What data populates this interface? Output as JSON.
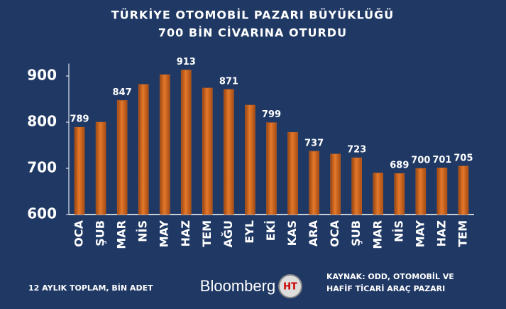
{
  "chart_data": {
    "type": "bar",
    "title": [
      "TÜRKİYE OTOMOBİL PAZARI BÜYÜKLÜĞÜ",
      "700 BİN CİVARINA OTURDU"
    ],
    "categories": [
      "OCA",
      "ŞUB",
      "MAR",
      "NİS",
      "MAY",
      "HAZ",
      "TEM",
      "AĞU",
      "EYL",
      "EKİ",
      "KAS",
      "ARA",
      "OCA",
      "ŞUB",
      "MAR",
      "NİS",
      "MAY",
      "HAZ",
      "TEM"
    ],
    "values": [
      789,
      800,
      847,
      882,
      903,
      913,
      874,
      871,
      837,
      799,
      778,
      737,
      731,
      723,
      690,
      689,
      700,
      701,
      705
    ],
    "show_value_label": [
      true,
      false,
      true,
      false,
      false,
      true,
      false,
      true,
      false,
      true,
      false,
      true,
      false,
      true,
      false,
      true,
      true,
      true,
      true
    ],
    "color": "#cf651d",
    "ylim": [
      600,
      927
    ],
    "yticks": [
      600,
      700,
      800,
      900
    ],
    "footnote": "12 AYLIK TOPLAM, BİN ADET",
    "brand": "Bloomberg",
    "logo": "HT",
    "source": [
      "KAYNAK: ODD, OTOMOBİL VE",
      "HAFİF TİCARİ ARAÇ PAZARI"
    ]
  }
}
